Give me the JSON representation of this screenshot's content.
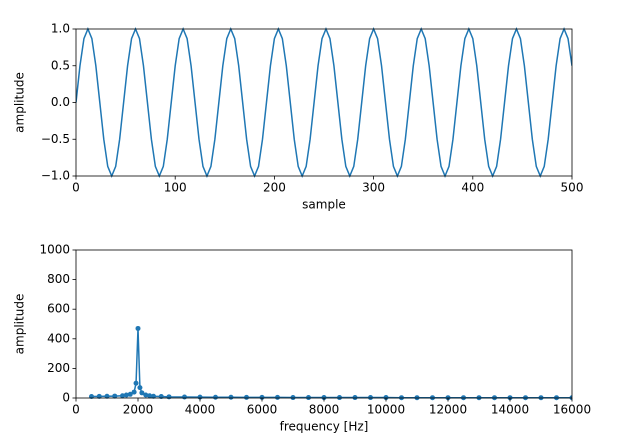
{
  "chart_data": [
    {
      "type": "line",
      "xlabel": "sample",
      "ylabel": "amplitude",
      "color": "#1f77b4",
      "marker": false,
      "xlim": [
        0,
        500
      ],
      "xticks": [
        0,
        100,
        200,
        300,
        400,
        500
      ],
      "ylim": [
        -1,
        1
      ],
      "yticks": [
        {
          "value": -1,
          "label": "−1.0"
        },
        {
          "value": -0.5,
          "label": "−0.5"
        },
        {
          "value": 0,
          "label": "0.0"
        },
        {
          "value": 0.5,
          "label": "0.5"
        },
        {
          "value": 1,
          "label": "1.0"
        }
      ],
      "x": [
        0,
        4,
        8,
        12,
        16,
        20,
        24,
        28,
        32,
        36,
        40,
        44,
        48,
        52,
        56,
        60,
        64,
        68,
        72,
        76,
        80,
        84,
        88,
        92,
        96,
        100,
        104,
        108,
        112,
        116,
        120,
        124,
        128,
        132,
        136,
        140,
        144,
        148,
        152,
        156,
        160,
        164,
        168,
        172,
        176,
        180,
        184,
        188,
        192,
        196,
        200,
        204,
        208,
        212,
        216,
        220,
        224,
        228,
        232,
        236,
        240,
        244,
        248,
        252,
        256,
        260,
        264,
        268,
        272,
        276,
        280,
        284,
        288,
        292,
        296,
        300,
        304,
        308,
        312,
        316,
        320,
        324,
        328,
        332,
        336,
        340,
        344,
        348,
        352,
        356,
        360,
        364,
        368,
        372,
        376,
        380,
        384,
        388,
        392,
        396,
        400,
        404,
        408,
        412,
        416,
        420,
        424,
        428,
        432,
        436,
        440,
        444,
        448,
        452,
        456,
        460,
        464,
        468,
        472,
        476,
        480,
        484,
        488,
        492,
        496,
        500
      ],
      "values": [
        0,
        0.5,
        0.87,
        1,
        0.87,
        0.5,
        0,
        -0.5,
        -0.87,
        -1,
        -0.87,
        -0.5,
        0,
        0.5,
        0.87,
        1,
        0.87,
        0.5,
        0,
        -0.5,
        -0.87,
        -1,
        -0.87,
        -0.5,
        0,
        0.5,
        0.87,
        1,
        0.87,
        0.5,
        0,
        -0.5,
        -0.87,
        -1,
        -0.87,
        -0.5,
        0,
        0.5,
        0.87,
        1,
        0.87,
        0.5,
        0,
        -0.5,
        -0.87,
        -1,
        -0.87,
        -0.5,
        0,
        0.5,
        0.87,
        1,
        0.87,
        0.5,
        0,
        -0.5,
        -0.87,
        -1,
        -0.87,
        -0.5,
        0,
        0.5,
        0.87,
        1,
        0.87,
        0.5,
        0,
        -0.5,
        -0.87,
        -1,
        -0.87,
        -0.5,
        0,
        0.5,
        0.87,
        1,
        0.87,
        0.5,
        0,
        -0.5,
        -0.87,
        -1,
        -0.87,
        -0.5,
        0,
        0.5,
        0.87,
        1,
        0.87,
        0.5,
        0,
        -0.5,
        -0.87,
        -1,
        -0.87,
        -0.5,
        0,
        0.5,
        0.87,
        1,
        0.87,
        0.5,
        0,
        -0.5,
        -0.87,
        -1,
        -0.87,
        -0.5,
        0,
        0.5,
        0.87,
        1,
        0.87,
        0.5,
        0,
        -0.5,
        -0.87,
        -1,
        -0.87,
        -0.5,
        0,
        0.5,
        0.87,
        1,
        0.87,
        0.5
      ]
    },
    {
      "type": "line",
      "xlabel": "frequency [Hz]",
      "ylabel": "amplitude",
      "color": "#1f77b4",
      "marker": true,
      "xlim": [
        0,
        16000
      ],
      "xticks": [
        0,
        2000,
        4000,
        6000,
        8000,
        10000,
        12000,
        14000,
        16000
      ],
      "ylim": [
        0,
        1000
      ],
      "yticks": [
        0,
        200,
        400,
        600,
        800,
        1000
      ],
      "x": [
        500,
        750,
        1000,
        1250,
        1500,
        1625,
        1750,
        1875,
        1937,
        2000,
        2062,
        2125,
        2250,
        2375,
        2500,
        2750,
        3000,
        3500,
        4000,
        4500,
        5000,
        5500,
        6000,
        6500,
        7000,
        7500,
        8000,
        8500,
        9000,
        9500,
        10000,
        10500,
        11000,
        11500,
        12000,
        12500,
        13000,
        13500,
        14000,
        14500,
        15000,
        15500,
        16000
      ],
      "values": [
        10,
        11,
        12,
        13,
        15,
        20,
        25,
        40,
        100,
        470,
        70,
        35,
        20,
        15,
        12,
        10,
        8,
        7,
        6,
        5,
        5,
        4,
        4,
        4,
        3,
        3,
        3,
        3,
        3,
        3,
        3,
        2,
        2,
        2,
        2,
        2,
        2,
        2,
        2,
        2,
        2,
        2,
        2
      ]
    }
  ]
}
